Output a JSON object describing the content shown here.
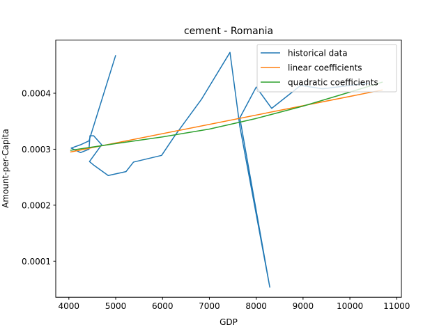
{
  "chart_data": {
    "type": "line",
    "title": "cement - Romania",
    "xlabel": "GDP",
    "ylabel": "Amount-per-Capita",
    "xlim": [
      3720,
      11100
    ],
    "ylim": [
      3.55e-05,
      0.000495
    ],
    "xticks": [
      4000,
      5000,
      6000,
      7000,
      8000,
      9000,
      10000,
      11000
    ],
    "yticks": [
      0.0001,
      0.0002,
      0.0003,
      0.0004
    ],
    "ytick_labels": [
      "0.0001",
      "0.0002",
      "0.0003",
      "0.0004"
    ],
    "legend_position": "top-right",
    "series": [
      {
        "name": "historical data",
        "color": "#1f77b4",
        "points": [
          [
            5000,
            0.000468
          ],
          [
            4430,
            0.000315
          ],
          [
            4250,
            0.000308
          ],
          [
            4050,
            0.000302
          ],
          [
            4250,
            0.000294
          ],
          [
            4430,
            0.0003
          ],
          [
            4450,
            0.000324
          ],
          [
            4530,
            0.000324
          ],
          [
            4700,
            0.000308
          ],
          [
            4440,
            0.000278
          ],
          [
            4540,
            0.000271
          ],
          [
            4840,
            0.000253
          ],
          [
            5220,
            0.00026
          ],
          [
            5380,
            0.000277
          ],
          [
            5980,
            0.000289
          ],
          [
            6270,
            0.000325
          ],
          [
            6830,
            0.000389
          ],
          [
            7440,
            0.000473
          ],
          [
            7650,
            0.000341
          ],
          [
            8290,
            5.35e-05
          ],
          [
            7650,
            0.000356
          ],
          [
            8000,
            0.000411
          ],
          [
            8330,
            0.000373
          ],
          [
            8950,
            0.000414
          ],
          [
            9420,
            0.000408
          ],
          [
            10100,
            0.000415
          ],
          [
            10400,
            0.000418
          ]
        ]
      },
      {
        "name": "linear coefficients",
        "color": "#ff7f0e",
        "points": [
          [
            4030,
            0.000295
          ],
          [
            10700,
            0.000406
          ]
        ]
      },
      {
        "name": "quadratic coefficients",
        "color": "#2ca02c",
        "points": [
          [
            4030,
            0.000298
          ],
          [
            5000,
            0.00031
          ],
          [
            6000,
            0.000322
          ],
          [
            7000,
            0.000336
          ],
          [
            8000,
            0.000355
          ],
          [
            9000,
            0.000377
          ],
          [
            10000,
            0.000402
          ],
          [
            10700,
            0.00042
          ]
        ]
      }
    ]
  }
}
